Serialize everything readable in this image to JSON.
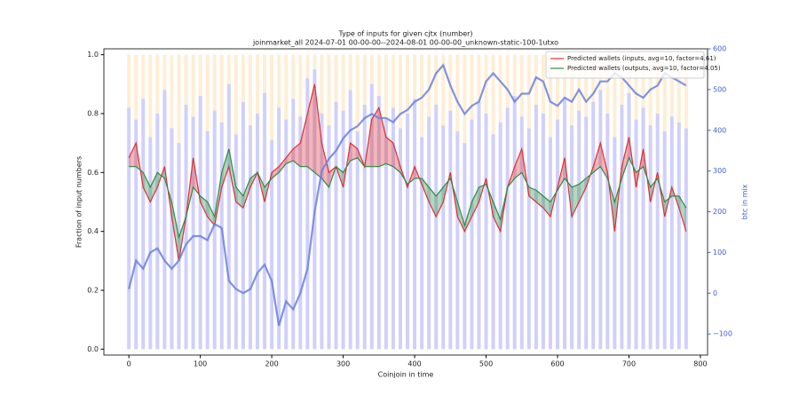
{
  "chart_data": {
    "type": "line",
    "title": "Type of inputs for given cjtx (number)",
    "subtitle": "joinmarket_all 2024-07-01 00-00-00--2024-08-01 00-00-00_unknown-static-100-1utxo",
    "x_label": "Coinjoin in time",
    "y_label": "Fraction of input numbers",
    "y2_label": "btc in mix",
    "x": [
      0,
      10,
      20,
      30,
      40,
      50,
      60,
      70,
      80,
      90,
      100,
      110,
      120,
      130,
      140,
      150,
      160,
      170,
      180,
      190,
      200,
      210,
      220,
      230,
      240,
      250,
      260,
      270,
      280,
      290,
      300,
      310,
      320,
      330,
      340,
      350,
      360,
      370,
      380,
      390,
      400,
      410,
      420,
      430,
      440,
      450,
      460,
      470,
      480,
      490,
      500,
      510,
      520,
      530,
      540,
      550,
      560,
      570,
      580,
      590,
      600,
      610,
      620,
      630,
      640,
      650,
      660,
      670,
      680,
      690,
      700,
      710,
      720,
      730,
      740,
      750,
      760,
      770,
      780
    ],
    "series": [
      {
        "type": "bar",
        "color": "#7878f0",
        "values": [
          0.82,
          0.78,
          0.85,
          0.72,
          0.8,
          0.88,
          0.75,
          0.7,
          0.83,
          0.79,
          0.86,
          0.74,
          0.81,
          0.77,
          0.9,
          0.73,
          0.84,
          0.76,
          0.8,
          0.87,
          0.71,
          0.82,
          0.78,
          0.85,
          0.79,
          0.92,
          0.95,
          0.8,
          0.76,
          0.84,
          0.81,
          0.88,
          0.74,
          0.83,
          0.9,
          0.86,
          0.78,
          0.82,
          0.75,
          0.8,
          0.85,
          0.72,
          0.79,
          0.83,
          0.76,
          0.81,
          0.74,
          0.7,
          0.78,
          0.84,
          0.8,
          0.73,
          0.77,
          0.82,
          0.86,
          0.79,
          0.75,
          0.83,
          0.8,
          0.72,
          0.78,
          0.85,
          0.76,
          0.81,
          0.79,
          0.84,
          0.88,
          0.8,
          0.72,
          0.83,
          0.87,
          0.78,
          0.82,
          0.76,
          0.8,
          0.74,
          0.79,
          0.77,
          0.75
        ]
      },
      {
        "name": "Predicted wallets (inputs, avg=10, factor=4.61)",
        "color": "#e03030",
        "values": [
          0.65,
          0.7,
          0.55,
          0.5,
          0.55,
          0.62,
          0.45,
          0.3,
          0.45,
          0.65,
          0.5,
          0.45,
          0.42,
          0.55,
          0.62,
          0.5,
          0.48,
          0.55,
          0.6,
          0.5,
          0.6,
          0.62,
          0.65,
          0.68,
          0.7,
          0.8,
          0.9,
          0.7,
          0.6,
          0.62,
          0.55,
          0.7,
          0.68,
          0.62,
          0.78,
          0.82,
          0.72,
          0.7,
          0.62,
          0.55,
          0.62,
          0.56,
          0.5,
          0.45,
          0.5,
          0.6,
          0.45,
          0.4,
          0.45,
          0.5,
          0.58,
          0.45,
          0.4,
          0.55,
          0.62,
          0.68,
          0.52,
          0.5,
          0.48,
          0.45,
          0.55,
          0.65,
          0.45,
          0.5,
          0.55,
          0.62,
          0.7,
          0.6,
          0.4,
          0.62,
          0.72,
          0.55,
          0.68,
          0.5,
          0.6,
          0.45,
          0.55,
          0.48,
          0.4
        ]
      },
      {
        "name": "Predicted wallets (outputs, avg=10, factor=4.05)",
        "color": "#2e8b3e",
        "values": [
          0.62,
          0.62,
          0.6,
          0.55,
          0.6,
          0.58,
          0.5,
          0.38,
          0.45,
          0.55,
          0.52,
          0.5,
          0.45,
          0.6,
          0.68,
          0.55,
          0.52,
          0.58,
          0.6,
          0.55,
          0.58,
          0.6,
          0.63,
          0.64,
          0.62,
          0.62,
          0.6,
          0.58,
          0.55,
          0.62,
          0.6,
          0.64,
          0.65,
          0.62,
          0.62,
          0.62,
          0.63,
          0.62,
          0.6,
          0.56,
          0.58,
          0.58,
          0.55,
          0.52,
          0.55,
          0.58,
          0.5,
          0.42,
          0.5,
          0.55,
          0.56,
          0.5,
          0.44,
          0.55,
          0.58,
          0.6,
          0.55,
          0.54,
          0.52,
          0.5,
          0.54,
          0.58,
          0.55,
          0.56,
          0.58,
          0.6,
          0.62,
          0.58,
          0.5,
          0.58,
          0.65,
          0.6,
          0.62,
          0.55,
          0.58,
          0.5,
          0.52,
          0.52,
          0.48
        ]
      },
      {
        "axis": "y2",
        "color": "#6a80e0",
        "values": [
          10,
          80,
          60,
          100,
          110,
          80,
          60,
          80,
          120,
          140,
          140,
          130,
          170,
          160,
          30,
          10,
          0,
          10,
          50,
          70,
          30,
          -80,
          -20,
          -40,
          0,
          60,
          200,
          300,
          330,
          350,
          380,
          400,
          410,
          430,
          440,
          430,
          430,
          420,
          440,
          450,
          470,
          480,
          500,
          540,
          560,
          510,
          470,
          440,
          460,
          470,
          520,
          540,
          520,
          500,
          470,
          490,
          490,
          530,
          520,
          470,
          460,
          480,
          470,
          500,
          470,
          490,
          520,
          520,
          540,
          530,
          510,
          490,
          480,
          500,
          510,
          540,
          530,
          520,
          510
        ]
      }
    ],
    "xlim": [
      -35,
      810
    ],
    "ylim": [
      -0.02,
      1.02
    ],
    "y2lim": [
      -152,
      600
    ],
    "xticks": [
      0,
      100,
      200,
      300,
      400,
      500,
      600,
      700,
      800
    ],
    "yticks": [
      {
        "value": 0,
        "label": "0.0"
      },
      {
        "value": 0.2,
        "label": "0.2"
      },
      {
        "value": 0.4,
        "label": "0.4"
      },
      {
        "value": 0.6,
        "label": "0.6"
      },
      {
        "value": 0.8,
        "label": "0.8"
      },
      {
        "value": 1,
        "label": "1.0"
      }
    ],
    "y2ticks": [
      {
        "value": -100,
        "label": "−100"
      },
      0,
      100,
      200,
      300,
      400,
      500,
      600
    ],
    "y2_color": "#4060d0",
    "legend": "upper right"
  }
}
